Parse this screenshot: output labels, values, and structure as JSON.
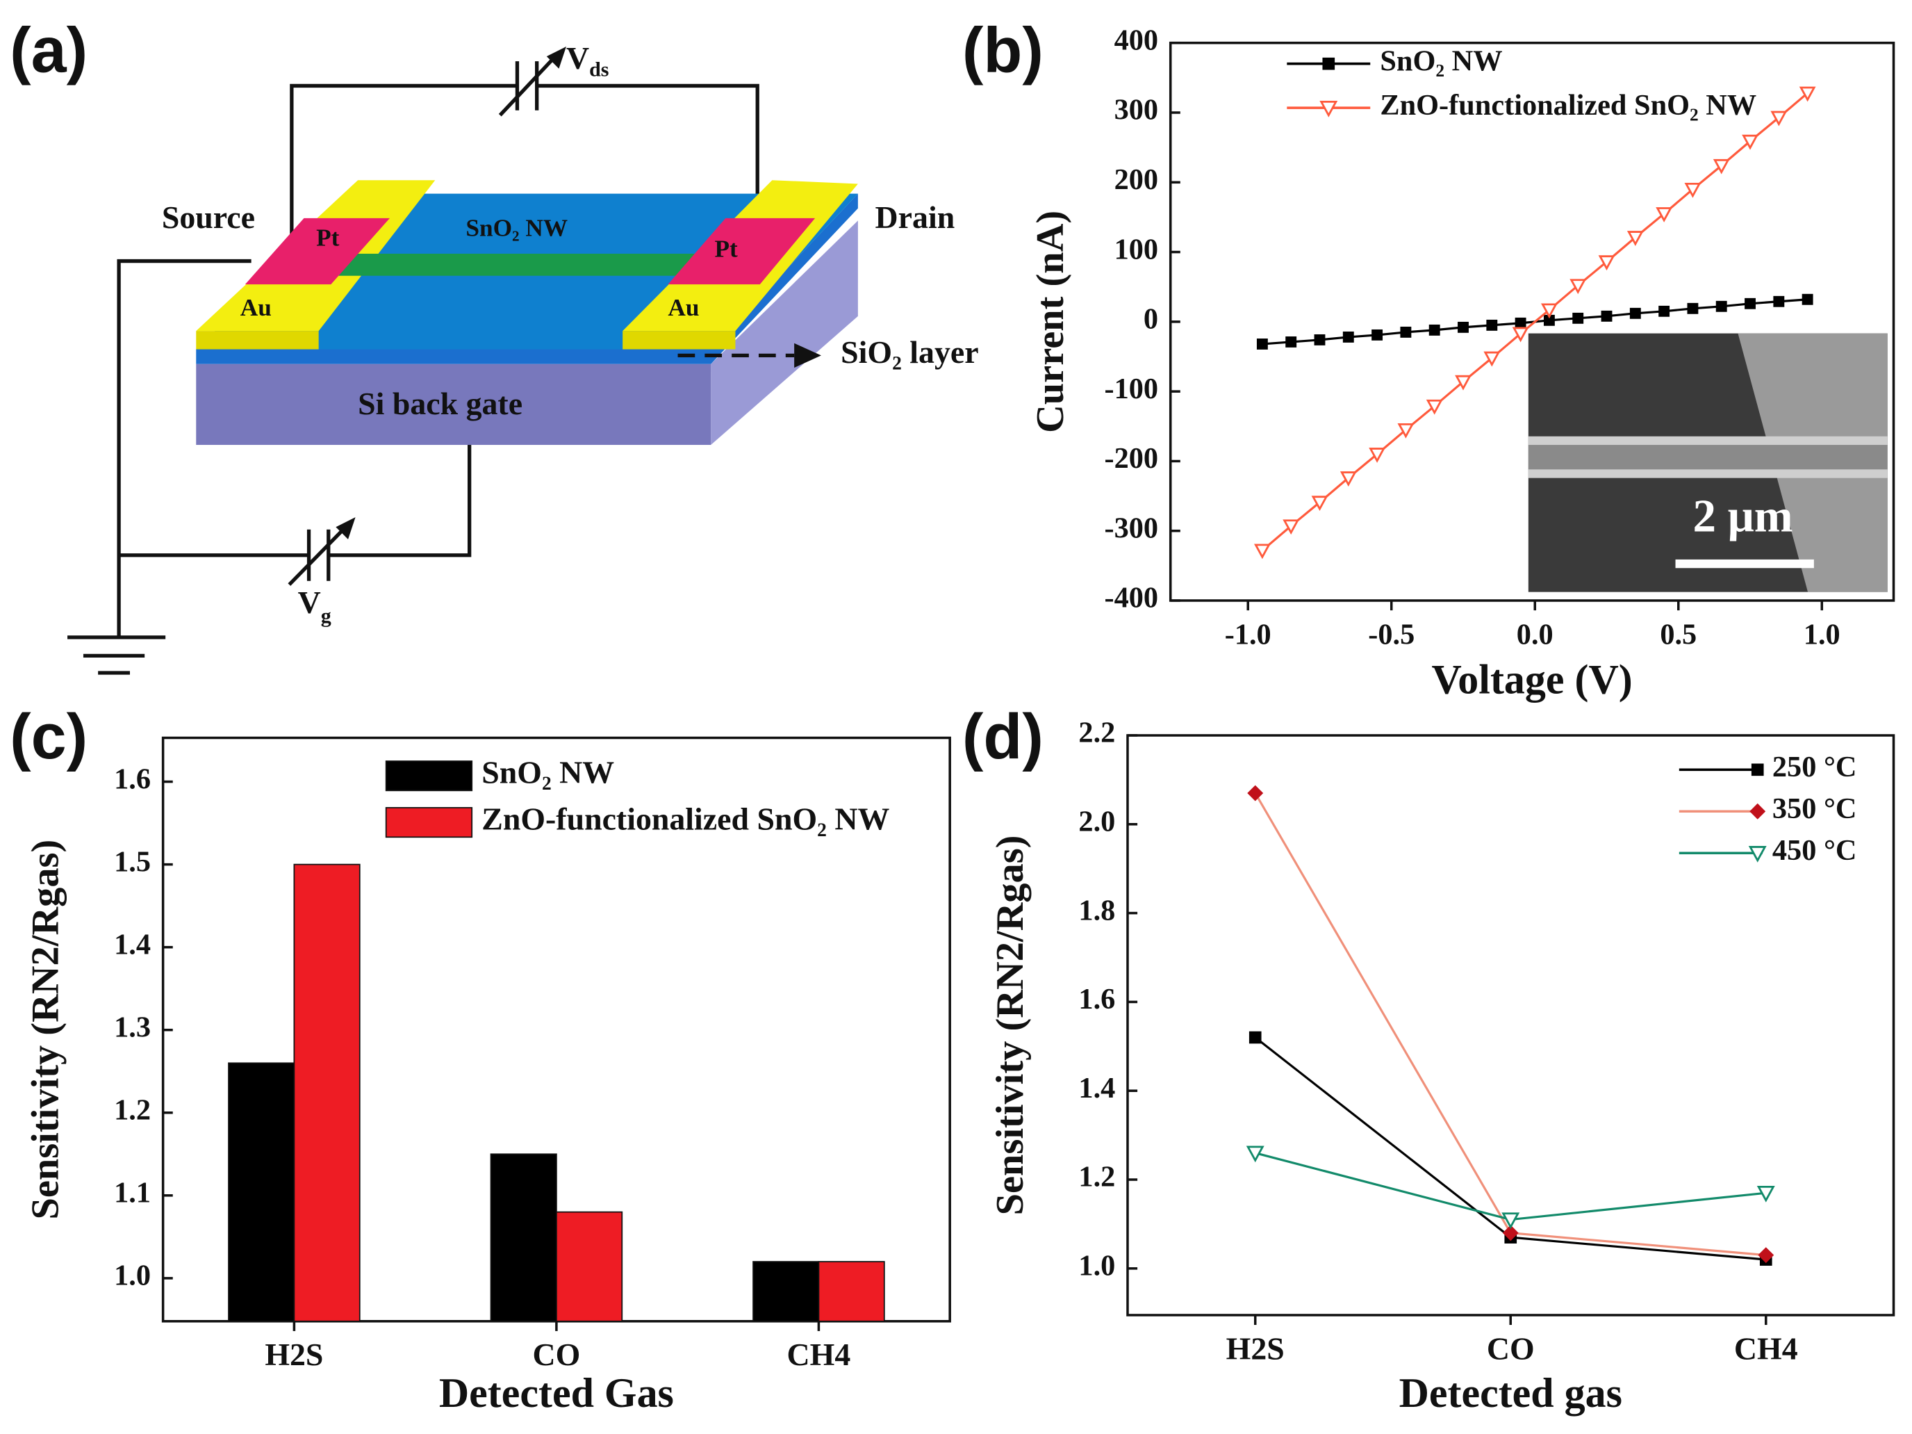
{
  "diagram": {
    "panel_label": "(a)",
    "vds": {
      "main": "V",
      "sub": "ds"
    },
    "vg": {
      "main": "V",
      "sub": "g"
    },
    "source": "Source",
    "drain": "Drain",
    "pt": "Pt",
    "au": "Au",
    "nanowire": "SnO₂ NW",
    "oxide": "SiO₂ layer",
    "gate": "Si back gate"
  },
  "chart_data": [
    {
      "type": "line",
      "panel_label": "(b)",
      "xlabel": "Voltage (V)",
      "ylabel": "Current (nA)",
      "x": [
        -0.95,
        -0.85,
        -0.75,
        -0.65,
        -0.55,
        -0.45,
        -0.35,
        -0.25,
        -0.15,
        -0.05,
        0.05,
        0.15,
        0.25,
        0.35,
        0.45,
        0.55,
        0.65,
        0.75,
        0.85,
        0.95
      ],
      "series": [
        {
          "name": "SnO₂ NW",
          "color": "#000000",
          "marker": "square",
          "values": [
            -32,
            -29,
            -26,
            -22,
            -19,
            -15,
            -12,
            -8,
            -5,
            -2,
            2,
            5,
            8,
            12,
            15,
            19,
            22,
            26,
            29,
            32
          ]
        },
        {
          "name": "ZnO-functionalized SnO₂ NW",
          "color": "#ff5a3c",
          "marker": "triangle-down",
          "values": [
            -328,
            -293,
            -259,
            -224,
            -190,
            -155,
            -121,
            -86,
            -52,
            -17,
            17,
            52,
            86,
            121,
            155,
            190,
            224,
            259,
            293,
            328
          ]
        }
      ],
      "xlim": [
        -1.27,
        1.25
      ],
      "ylim": [
        -400,
        400
      ],
      "xticks": [
        {
          "value": -1,
          "label": "-1.0"
        },
        -0.5,
        {
          "value": 0,
          "label": "0.0"
        },
        0.5,
        {
          "value": 1,
          "label": "1.0"
        }
      ],
      "yticks": [
        -400,
        -300,
        -200,
        -100,
        0,
        100,
        200,
        300,
        400
      ],
      "legend": "upper left",
      "inset_scale_label": "2 μm"
    },
    {
      "type": "bar",
      "panel_label": "(c)",
      "xlabel": "Detected Gas",
      "ylabel": "Sensitivity (RN2/Rgas)",
      "categories": [
        "H2S",
        "CO",
        "CH4"
      ],
      "series": [
        {
          "name": "SnO₂ NW",
          "color": "#000000",
          "values": [
            1.26,
            1.15,
            1.02
          ]
        },
        {
          "name": "ZnO-functionalized SnO₂ NW",
          "color": "#ee1c24",
          "values": [
            1.5,
            1.08,
            1.02
          ]
        }
      ],
      "ylim": [
        0.948,
        1.653
      ],
      "yticks": [
        {
          "value": 1.0,
          "label": "1.0"
        },
        1.1,
        1.2,
        1.3,
        1.4,
        1.5,
        1.6
      ],
      "legend": "upper right"
    },
    {
      "type": "line",
      "panel_label": "(d)",
      "xlabel": "Detected gas",
      "ylabel": "Sensitivity (RN2/Rgas)",
      "categories": [
        "H2S",
        "CO",
        "CH4"
      ],
      "series": [
        {
          "name": "250 °C",
          "color": "#000000",
          "marker": "square",
          "values": [
            1.52,
            1.07,
            1.02
          ]
        },
        {
          "name": "350 °C",
          "color": "#f0907a",
          "marker_color": "#c0101a",
          "marker": "diamond",
          "values": [
            2.07,
            1.08,
            1.03
          ]
        },
        {
          "name": "450 °C",
          "color": "#128a6a",
          "marker": "triangle-down",
          "values": [
            1.26,
            1.11,
            1.17
          ]
        }
      ],
      "ylim": [
        0.895,
        2.2
      ],
      "yticks": [
        {
          "value": 1.0,
          "label": "1.0"
        },
        1.2,
        1.4,
        1.6,
        1.8,
        {
          "value": 2.0,
          "label": "2.0"
        },
        2.2
      ],
      "legend": "upper right"
    }
  ]
}
